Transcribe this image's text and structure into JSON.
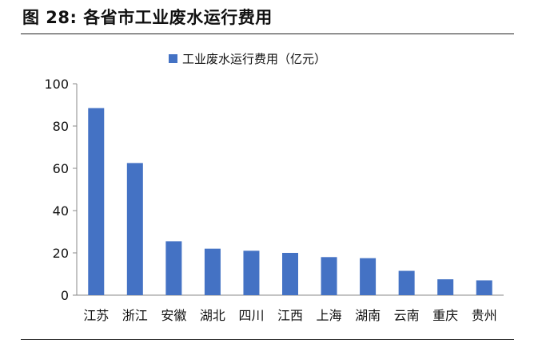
{
  "figure": {
    "title": "图 28:  各省市工业废水运行费用"
  },
  "chart_data": {
    "type": "bar",
    "categories": [
      "江苏",
      "浙江",
      "安徽",
      "湖北",
      "四川",
      "江西",
      "上海",
      "湖南",
      "云南",
      "重庆",
      "贵州"
    ],
    "series": [
      {
        "name": "工业废水运行费用（亿元）",
        "values": [
          88.5,
          62.5,
          25.5,
          22,
          21,
          20,
          18,
          17.5,
          11.5,
          7.5,
          7
        ],
        "color": "#4472C4"
      }
    ],
    "yticks": [
      0,
      20,
      40,
      60,
      80,
      100
    ],
    "ylim": [
      0,
      100
    ],
    "legend_position": "top-center",
    "grid": false
  }
}
